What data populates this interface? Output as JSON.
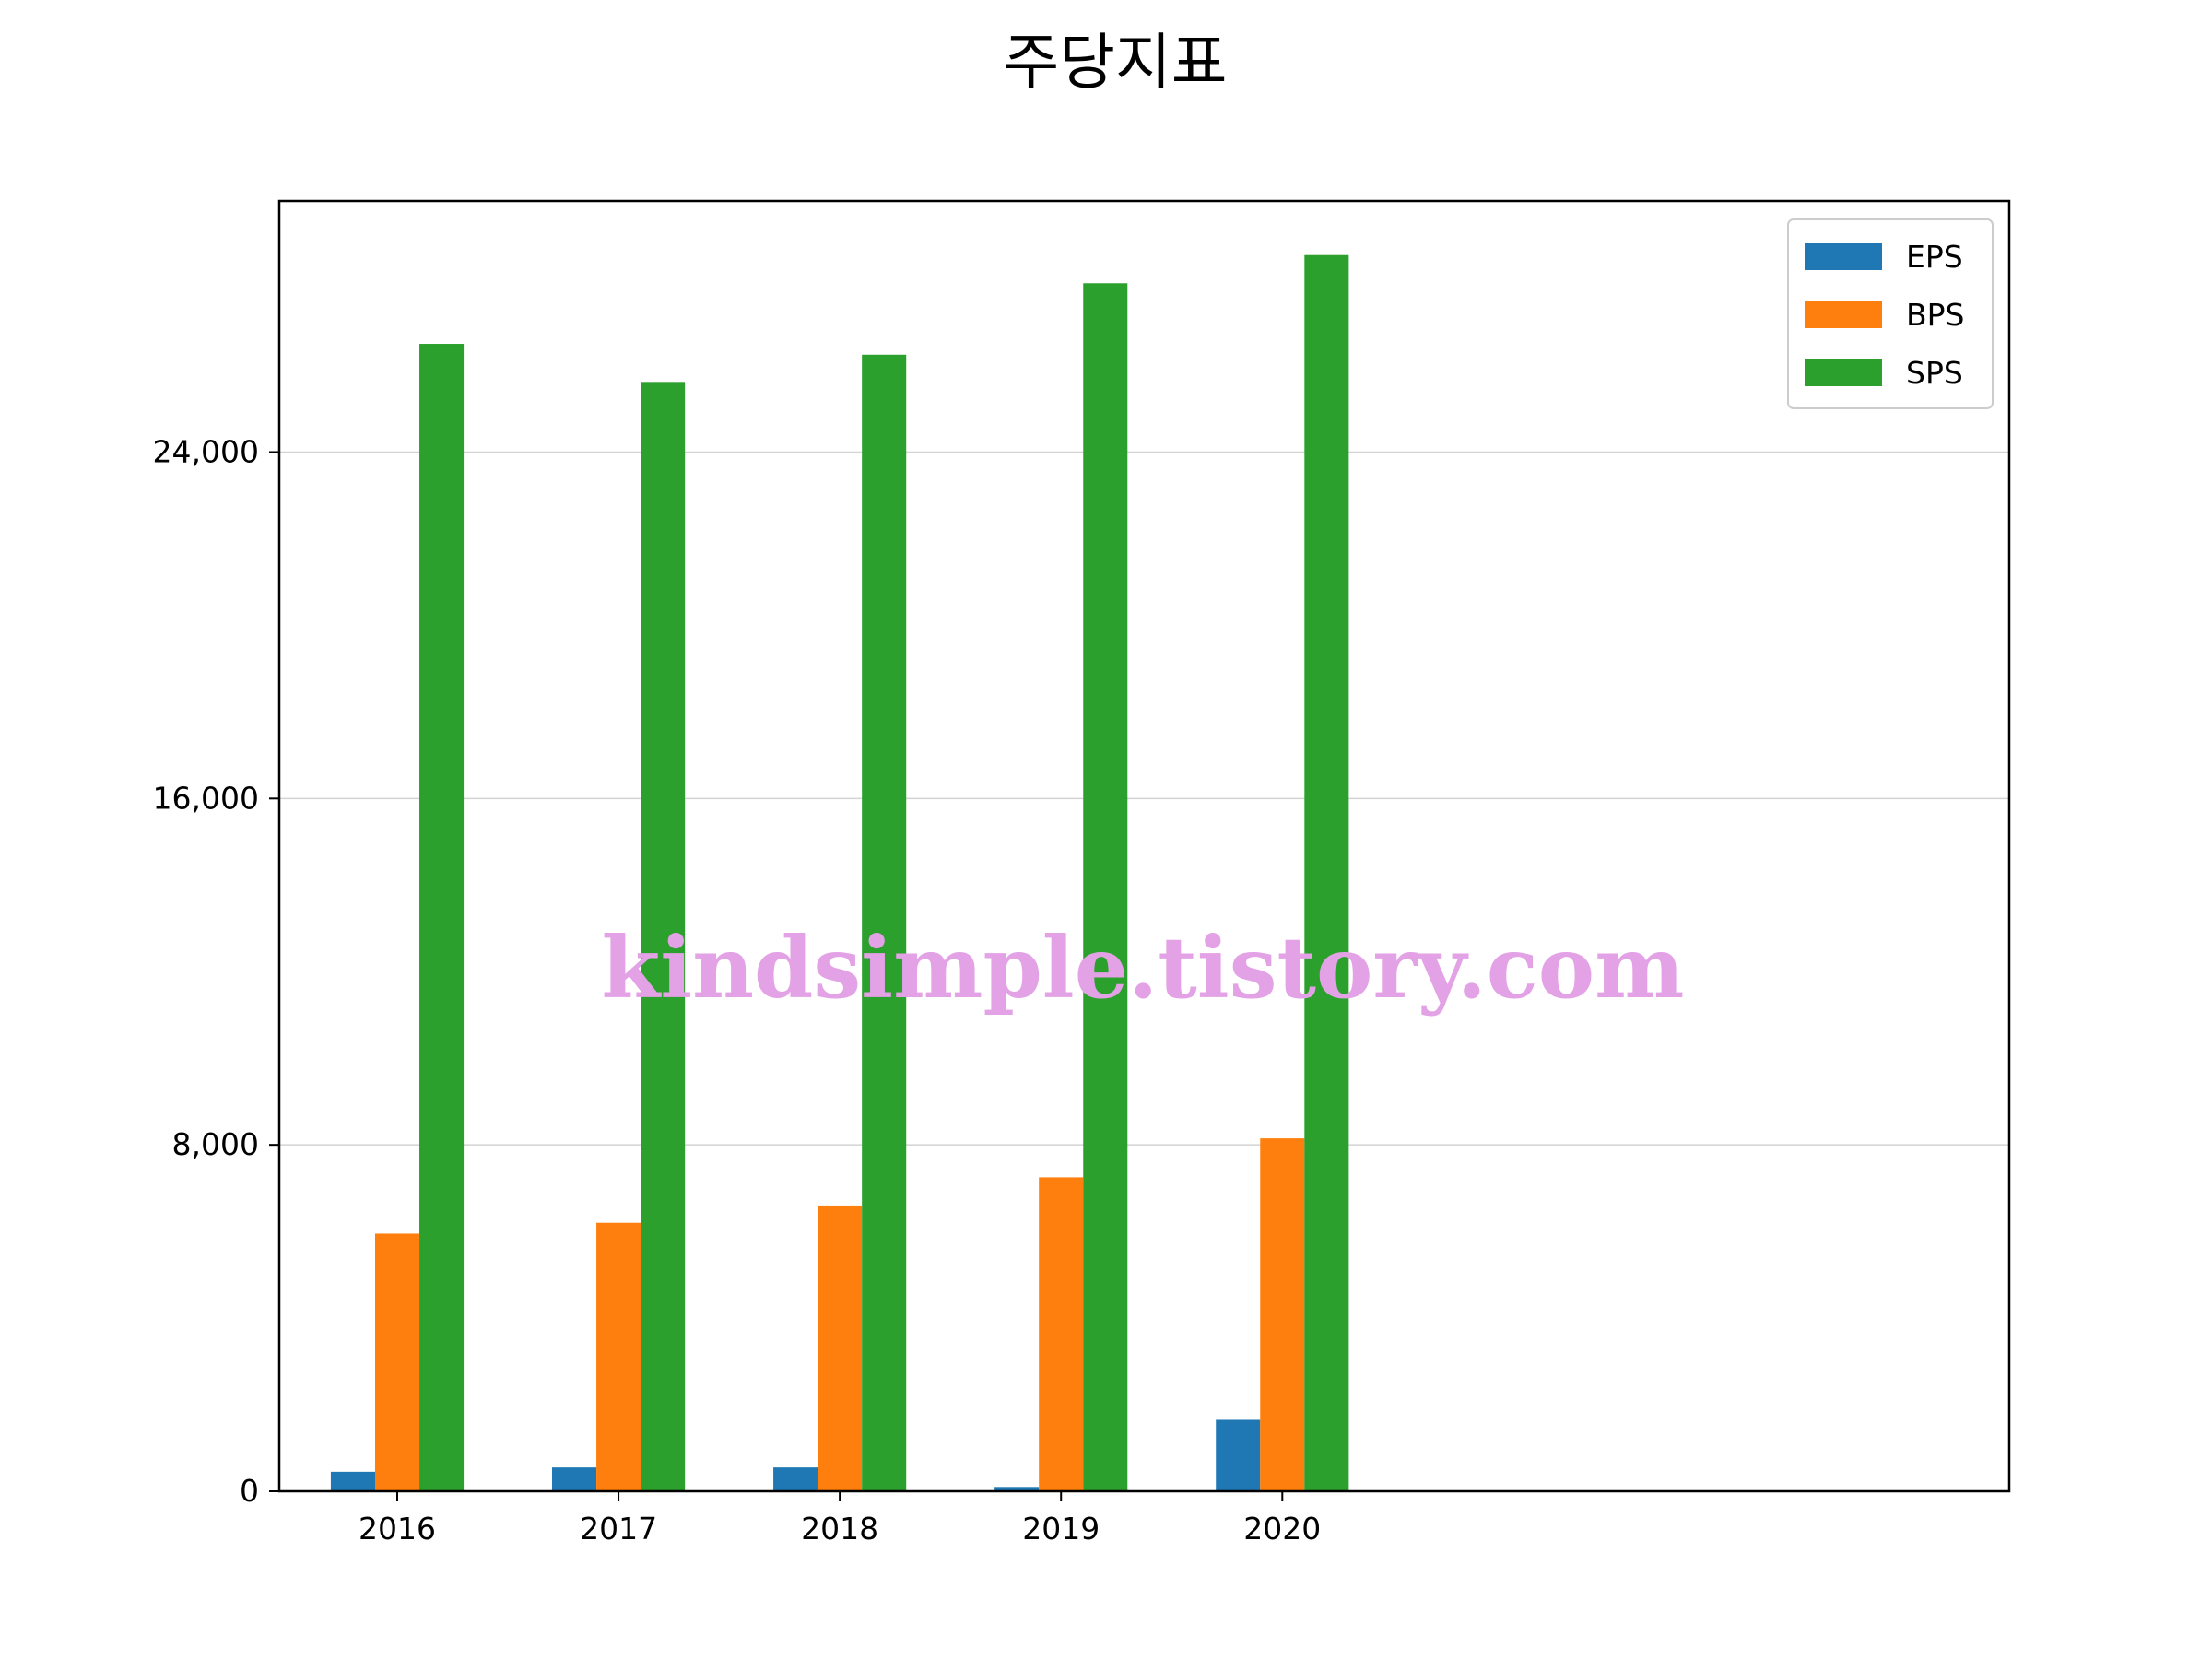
{
  "chart_data": {
    "type": "bar",
    "title": "주당지표",
    "categories": [
      "2016",
      "2017",
      "2018",
      "2019",
      "2020"
    ],
    "series": [
      {
        "name": "EPS",
        "color": "#1f77b4",
        "values": [
          450,
          550,
          550,
          100,
          1650
        ]
      },
      {
        "name": "BPS",
        "color": "#ff7f0e",
        "values": [
          5950,
          6200,
          6600,
          7250,
          8150
        ]
      },
      {
        "name": "SPS",
        "color": "#2ca02c",
        "values": [
          26500,
          25600,
          26250,
          27900,
          28550
        ]
      }
    ],
    "ylim": [
      0,
      29800
    ],
    "yticks": [
      {
        "value": 0,
        "label": "0"
      },
      {
        "value": 8000,
        "label": "8,000"
      },
      {
        "value": 16000,
        "label": "16,000"
      },
      {
        "value": 24000,
        "label": "24,000"
      }
    ],
    "grid": "y",
    "legend": "top-right"
  },
  "watermark": "kindsimple.tistory.com"
}
